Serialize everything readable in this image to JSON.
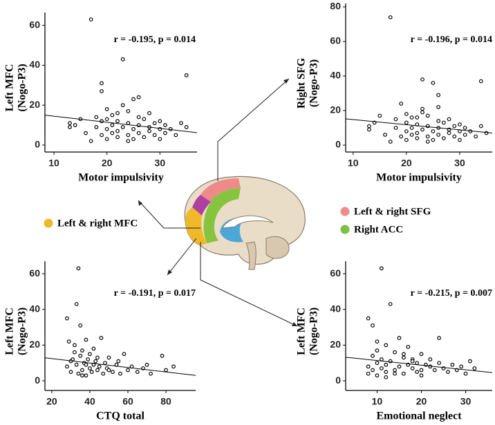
{
  "chart_data": [
    {
      "type": "scatter",
      "xlabel": "Motor impulsivity",
      "ylabel": [
        "Left MFC",
        "(Nogo-P3)"
      ],
      "annotation": "r = -0.195, p = 0.014",
      "xlim": [
        8.3,
        37
      ],
      "ylim": [
        -3.5,
        66.5
      ],
      "xticks": [
        10,
        20,
        30
      ],
      "yticks": [
        0,
        20,
        40,
        60
      ],
      "color": "#000000",
      "x": [
        13,
        13,
        14,
        15,
        16,
        17,
        17,
        18,
        18,
        19,
        19,
        19,
        19,
        20,
        20,
        20,
        21,
        21,
        21,
        22,
        22,
        22,
        23,
        23,
        23,
        24,
        24,
        24,
        25,
        25,
        25,
        26,
        26,
        26,
        27,
        27,
        28,
        28,
        29,
        29,
        30,
        30,
        31,
        31,
        32,
        33,
        34,
        35,
        35,
        20,
        22,
        24,
        26,
        28,
        30
      ],
      "values": [
        9,
        11,
        10,
        13,
        6,
        2,
        63,
        9,
        14,
        31,
        27,
        5,
        12,
        8,
        18,
        3,
        10,
        6,
        15,
        7,
        12,
        4,
        43,
        9,
        20,
        5,
        11,
        17,
        8,
        23,
        3,
        24,
        10,
        6,
        13,
        4,
        9,
        7,
        11,
        5,
        8,
        3,
        10,
        6,
        8,
        5,
        11,
        35,
        9,
        13,
        16,
        2,
        14,
        16,
        12
      ],
      "trendline": {
        "x": [
          8.3,
          37
        ],
        "y": [
          15,
          6.2
        ]
      }
    },
    {
      "type": "scatter",
      "xlabel": "Motor impulsivity",
      "ylabel": [
        "Right SFG",
        "(Nogo-P3)"
      ],
      "annotation": "r = -0.196, p = 0.014",
      "xlim": [
        8.6,
        36.1
      ],
      "ylim": [
        -4,
        82
      ],
      "xticks": [
        10,
        20,
        30
      ],
      "yticks": [
        0,
        20,
        40,
        60,
        80
      ],
      "color": "#000000",
      "x": [
        13,
        13,
        14,
        15,
        16,
        17,
        17,
        18,
        18,
        19,
        19,
        20,
        20,
        20,
        21,
        21,
        21,
        22,
        22,
        22,
        23,
        23,
        23,
        24,
        24,
        24,
        25,
        25,
        25,
        26,
        26,
        26,
        27,
        27,
        28,
        28,
        29,
        29,
        30,
        30,
        31,
        31,
        32,
        33,
        34,
        34,
        35,
        20,
        22,
        24,
        26,
        28,
        30,
        26,
        23
      ],
      "values": [
        9,
        11,
        13,
        17,
        6,
        2,
        74,
        10,
        15,
        24,
        5,
        8,
        18,
        3,
        10,
        6,
        16,
        7,
        12,
        4,
        38,
        9,
        21,
        5,
        11,
        17,
        8,
        36,
        3,
        29,
        10,
        6,
        13,
        4,
        9,
        7,
        11,
        5,
        8,
        3,
        10,
        6,
        8,
        5,
        11,
        37,
        7,
        13,
        16,
        2,
        14,
        15,
        12,
        22,
        19
      ],
      "trendline": {
        "x": [
          8.6,
          36.1
        ],
        "y": [
          15.2,
          7
        ]
      }
    },
    {
      "type": "scatter",
      "xlabel": "CTQ total",
      "ylabel": [
        "Left MFC",
        "(Nogo-P3)"
      ],
      "annotation": "r = -0.191, p = 0.017",
      "xlim": [
        16.4,
        95.6
      ],
      "ylim": [
        -5.4,
        67
      ],
      "xticks": [
        20,
        40,
        60,
        80
      ],
      "yticks": [
        0,
        20,
        40,
        60
      ],
      "color": "#000000",
      "x": [
        28,
        28,
        29,
        30,
        31,
        32,
        33,
        33,
        34,
        34,
        35,
        35,
        36,
        36,
        37,
        38,
        38,
        39,
        40,
        40,
        41,
        42,
        42,
        43,
        44,
        45,
        46,
        47,
        48,
        49,
        50,
        52,
        54,
        55,
        56,
        58,
        60,
        62,
        65,
        68,
        70,
        72,
        78,
        80,
        84,
        30,
        32,
        36,
        38,
        44,
        50
      ],
      "values": [
        35,
        8,
        22,
        5,
        12,
        20,
        43,
        9,
        63,
        4,
        31,
        14,
        6,
        17,
        10,
        23,
        3,
        12,
        7,
        15,
        5,
        9,
        18,
        11,
        6,
        8,
        24,
        4,
        10,
        7,
        13,
        5,
        9,
        11,
        4,
        15,
        6,
        8,
        5,
        7,
        9,
        4,
        14,
        6,
        8,
        11,
        16,
        3,
        9,
        13,
        6
      ],
      "trendline": {
        "x": [
          16.4,
          95.6
        ],
        "y": [
          12.9,
          3
        ]
      }
    },
    {
      "type": "scatter",
      "xlabel": "Emotional neglect",
      "ylabel": [
        "Left MFC",
        "(Nogo-P3)"
      ],
      "annotation": "r = -0.215, p = 0.007",
      "xlim": [
        2.9,
        36
      ],
      "ylim": [
        -5.4,
        67
      ],
      "xticks": [
        10,
        20,
        30
      ],
      "yticks": [
        0,
        20,
        40,
        60
      ],
      "color": "#000000",
      "x": [
        8,
        8,
        8,
        9,
        9,
        9,
        10,
        10,
        10,
        11,
        11,
        11,
        12,
        12,
        12,
        13,
        13,
        14,
        14,
        15,
        15,
        16,
        16,
        17,
        17,
        18,
        18,
        19,
        19,
        20,
        20,
        21,
        22,
        22,
        23,
        24,
        24,
        25,
        26,
        27,
        28,
        29,
        30,
        31,
        32,
        10,
        12,
        14,
        16,
        18,
        20
      ],
      "values": [
        35,
        8,
        4,
        31,
        14,
        6,
        22,
        10,
        3,
        63,
        12,
        7,
        20,
        9,
        5,
        43,
        11,
        16,
        6,
        24,
        8,
        13,
        4,
        19,
        9,
        7,
        12,
        10,
        5,
        15,
        6,
        9,
        8,
        12,
        6,
        24,
        10,
        7,
        5,
        9,
        6,
        8,
        4,
        11,
        7,
        17,
        2,
        4,
        15,
        11,
        3
      ],
      "trendline": {
        "x": [
          2.9,
          36
        ],
        "y": [
          13.2,
          4.6
        ]
      }
    }
  ],
  "regions": [
    {
      "label": "Left & right MFC",
      "color": "#f0b82b"
    },
    {
      "label": "Left & right SFG",
      "color": "#f08a8a"
    },
    {
      "label": "Right ACC",
      "color": "#7dc142"
    }
  ]
}
